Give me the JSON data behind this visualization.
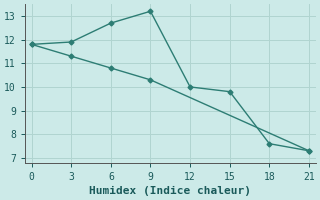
{
  "line1_x": [
    0,
    3,
    6,
    9,
    12,
    15,
    18,
    21
  ],
  "line1_y": [
    11.8,
    11.9,
    12.7,
    13.2,
    10.0,
    9.8,
    7.6,
    7.3
  ],
  "line2_x": [
    0,
    3,
    6,
    9,
    21
  ],
  "line2_y": [
    11.8,
    11.3,
    10.8,
    10.3,
    7.3
  ],
  "line_color": "#2d7d74",
  "bg_color": "#cceae8",
  "grid_color": "#b0d4d0",
  "xlabel": "Humidex (Indice chaleur)",
  "xlim": [
    -0.5,
    21.5
  ],
  "ylim": [
    6.8,
    13.5
  ],
  "xticks": [
    0,
    3,
    6,
    9,
    12,
    15,
    18,
    21
  ],
  "yticks": [
    7,
    8,
    9,
    10,
    11,
    12,
    13
  ],
  "marker": "D",
  "markersize": 2.5,
  "linewidth": 1.0,
  "font_color": "#1a5a5a",
  "tick_fontsize": 7,
  "xlabel_fontsize": 8
}
